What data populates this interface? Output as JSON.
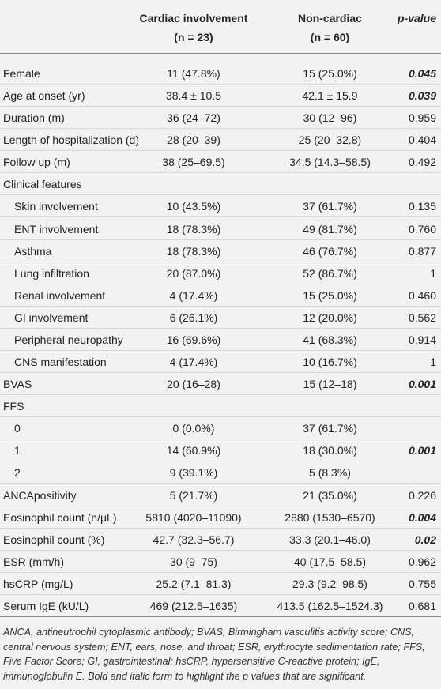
{
  "table": {
    "header": [
      {
        "lines": [
          "Cardiac involvement",
          "(n = 23)"
        ]
      },
      {
        "lines": [
          "Non-cardiac",
          "(n = 60)"
        ]
      },
      {
        "lines": [
          "p-value"
        ]
      }
    ],
    "rows": [
      {
        "label": "Female",
        "cardiac": "11 (47.8%)",
        "noncardiac": "15 (25.0%)",
        "p": "0.045",
        "significant": true
      },
      {
        "label": "Age at onset (yr)",
        "cardiac": "38.4 ± 10.5",
        "noncardiac": "42.1 ± 15.9",
        "p": "0.039",
        "significant": true
      },
      {
        "label": "Duration (m)",
        "cardiac": "36 (24–72)",
        "noncardiac": "30 (12–96)",
        "p": "0.959"
      },
      {
        "label": "Length of hospitalization (d)",
        "cardiac": "28 (20–39)",
        "noncardiac": "25 (20–32.8)",
        "p": "0.404"
      },
      {
        "label": "Follow up (m)",
        "cardiac": "38 (25–69.5)",
        "noncardiac": "34.5 (14.3–58.5)",
        "p": "0.492"
      },
      {
        "label": "Clinical features"
      },
      {
        "label": "Skin involvement",
        "indent": true,
        "cardiac": "10 (43.5%)",
        "noncardiac": "37 (61.7%)",
        "p": "0.135"
      },
      {
        "label": "ENT involvement",
        "indent": true,
        "cardiac": "18 (78.3%)",
        "noncardiac": "49 (81.7%)",
        "p": "0.760"
      },
      {
        "label": "Asthma",
        "indent": true,
        "cardiac": "18 (78.3%)",
        "noncardiac": "46 (76.7%)",
        "p": "0.877"
      },
      {
        "label": "Lung infiltration",
        "indent": true,
        "cardiac": "20 (87.0%)",
        "noncardiac": "52 (86.7%)",
        "p": "1"
      },
      {
        "label": "Renal involvement",
        "indent": true,
        "cardiac": "4 (17.4%)",
        "noncardiac": "15 (25.0%)",
        "p": "0.460"
      },
      {
        "label": "GI involvement",
        "indent": true,
        "cardiac": "6 (26.1%)",
        "noncardiac": "12 (20.0%)",
        "p": "0.562"
      },
      {
        "label": "Peripheral neuropathy",
        "indent": true,
        "cardiac": "16 (69.6%)",
        "noncardiac": "41 (68.3%)",
        "p": "0.914"
      },
      {
        "label": "CNS manifestation",
        "indent": true,
        "cardiac": "4 (17.4%)",
        "noncardiac": "10 (16.7%)",
        "p": "1"
      },
      {
        "label": "BVAS",
        "cardiac": "20 (16–28)",
        "noncardiac": "15 (12–18)",
        "p": "0.001",
        "significant": true
      },
      {
        "label": "FFS"
      },
      {
        "label": "0",
        "indent": true,
        "cardiac": "0 (0.0%)",
        "noncardiac": "37 (61.7%)"
      },
      {
        "label": "1",
        "indent": true,
        "cardiac": "14 (60.9%)",
        "noncardiac": "18 (30.0%)",
        "p": "0.001",
        "significant": true
      },
      {
        "label": "2",
        "indent": true,
        "cardiac": "9 (39.1%)",
        "noncardiac": "5 (8.3%)"
      },
      {
        "label": "ANCApositivity",
        "cardiac": "5 (21.7%)",
        "noncardiac": "21 (35.0%)",
        "p": "0.226"
      },
      {
        "label": "Eosinophil count (n/μL)",
        "cardiac": "5810 (4020–11090)",
        "noncardiac": "2880 (1530–6570)",
        "p": "0.004",
        "significant": true
      },
      {
        "label": "Eosinophil count (%)",
        "cardiac": "42.7 (32.3–56.7)",
        "noncardiac": "33.3 (20.1–46.0)",
        "p": "0.02",
        "significant": true
      },
      {
        "label": "ESR (mm/h)",
        "cardiac": "30 (9–75)",
        "noncardiac": "40 (17.5–58.5)",
        "p": "0.962"
      },
      {
        "label": "hsCRP (mg/L)",
        "cardiac": "25.2 (7.1–81.3)",
        "noncardiac": "29.3 (9.2–98.5)",
        "p": "0.755"
      },
      {
        "label": "Serum IgE (kU/L)",
        "cardiac": "469 (212.5–1635)",
        "noncardiac": "413.5 (162.5–1524.3)",
        "p": "0.681"
      }
    ],
    "footnote": "ANCA, antineutrophil cytoplasmic antibody; BVAS, Birmingham vasculitis activity score; CNS, central nervous system; ENT, ears, nose, and throat; ESR, erythrocyte sedimentation rate; FFS, Five Factor Score; GI, gastrointestinal; hsCRP, hypersensitive C-reactive protein; IgE, immunoglobulin E. Bold and italic form to highlight the p values that are significant."
  }
}
